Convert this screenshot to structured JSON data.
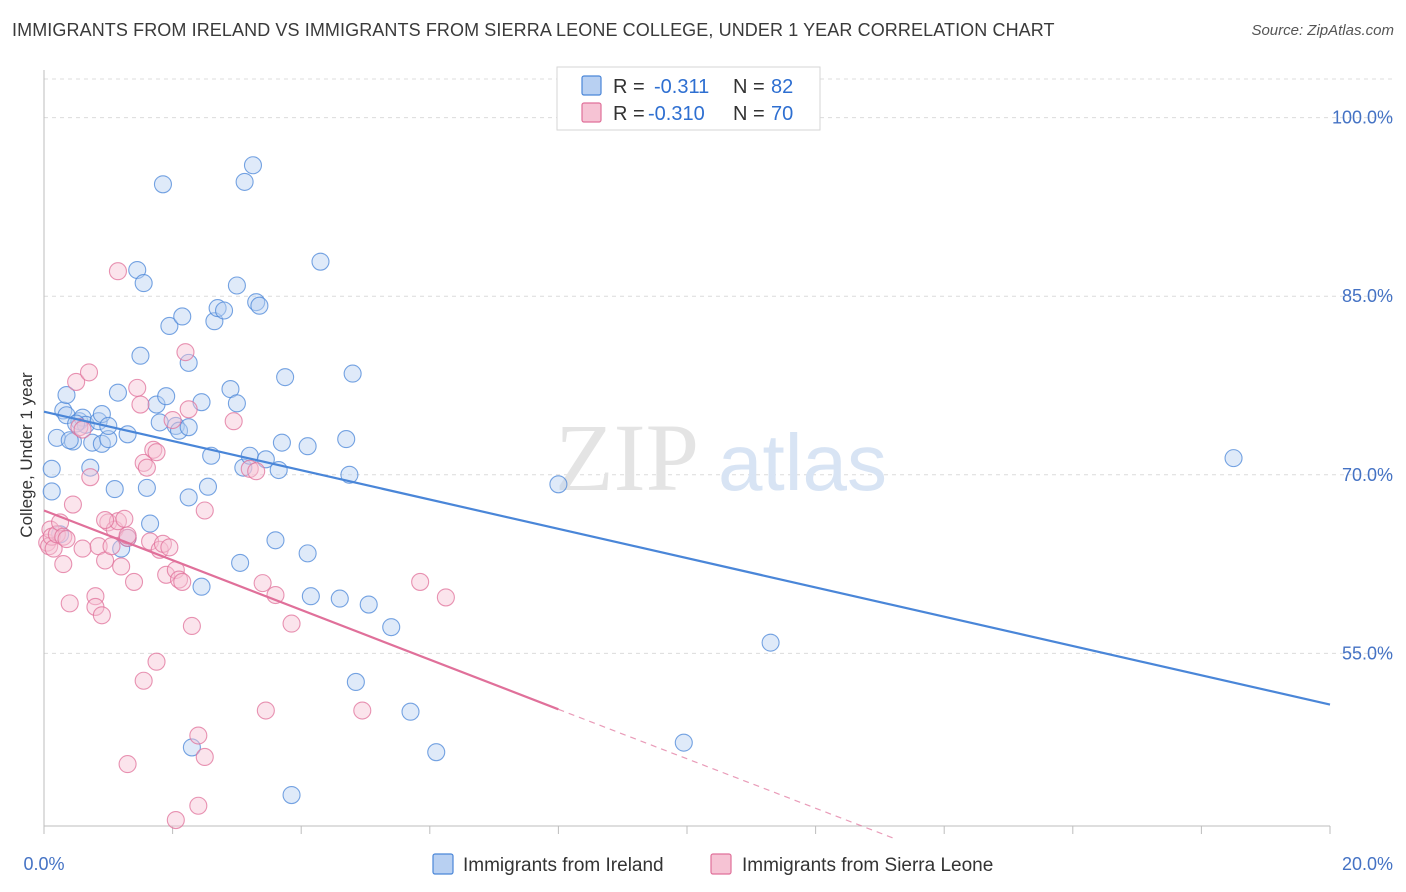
{
  "header": {
    "title": "IMMIGRANTS FROM IRELAND VS IMMIGRANTS FROM SIERRA LEONE COLLEGE, UNDER 1 YEAR CORRELATION CHART",
    "source": "Source: ZipAtlas.com"
  },
  "watermark": {
    "zip": "ZIP",
    "atlas": "atlas"
  },
  "stats_legend": {
    "r_label": "R =",
    "n_label": "N =",
    "rows": [
      {
        "r": "-0.311",
        "n": "82"
      },
      {
        "r": "-0.310",
        "n": "70"
      }
    ]
  },
  "colors": {
    "ireland": "#4a86d8",
    "ireland_fill": "#b8d0f2",
    "sierra_leone": "#e0709a",
    "sierra_leone_fill": "#f6c3d4",
    "tick_text": "#4472c4",
    "grid": "#dcdcdc"
  },
  "chart_data": {
    "type": "scatter",
    "title": "IMMIGRANTS FROM IRELAND VS IMMIGRANTS FROM SIERRA LEONE COLLEGE, UNDER 1 YEAR CORRELATION CHART",
    "xlabel": "",
    "ylabel": "College, Under 1 year",
    "xlim": [
      0,
      20
    ],
    "ylim": [
      40.5,
      104
    ],
    "x_tick_labels": [
      "0.0%",
      "20.0%"
    ],
    "y_ticks": [
      55,
      70,
      85,
      100
    ],
    "y_tick_labels": [
      "55.0%",
      "70.0%",
      "85.0%",
      "100.0%"
    ],
    "grid": true,
    "legend_position": "bottom",
    "series": [
      {
        "name": "Immigrants from Ireland",
        "color": "#4a86d8",
        "trend": {
          "x": [
            0,
            20
          ],
          "y": [
            75.3,
            50.7
          ],
          "style": "solid"
        },
        "points": [
          [
            0.12,
            70.5
          ],
          [
            0.12,
            68.6
          ],
          [
            0.2,
            73.1
          ],
          [
            0.3,
            75.4
          ],
          [
            0.35,
            76.7
          ],
          [
            0.35,
            75.0
          ],
          [
            0.45,
            72.8
          ],
          [
            0.55,
            74.5
          ],
          [
            0.6,
            74.8
          ],
          [
            0.65,
            74.2
          ],
          [
            0.72,
            70.6
          ],
          [
            0.75,
            72.7
          ],
          [
            0.85,
            74.5
          ],
          [
            0.9,
            75.1
          ],
          [
            0.9,
            72.6
          ],
          [
            1.0,
            73.0
          ],
          [
            1.1,
            68.8
          ],
          [
            1.15,
            76.9
          ],
          [
            1.2,
            63.8
          ],
          [
            1.3,
            73.4
          ],
          [
            1.3,
            64.7
          ],
          [
            1.45,
            87.2
          ],
          [
            1.5,
            80.0
          ],
          [
            1.55,
            86.1
          ],
          [
            1.6,
            68.9
          ],
          [
            1.65,
            65.9
          ],
          [
            1.75,
            75.9
          ],
          [
            1.8,
            74.4
          ],
          [
            1.85,
            94.4
          ],
          [
            1.9,
            76.6
          ],
          [
            1.95,
            82.5
          ],
          [
            2.05,
            74.1
          ],
          [
            2.1,
            73.7
          ],
          [
            2.15,
            83.3
          ],
          [
            2.25,
            74.0
          ],
          [
            2.25,
            79.4
          ],
          [
            2.25,
            68.1
          ],
          [
            2.45,
            76.1
          ],
          [
            2.45,
            60.6
          ],
          [
            2.55,
            69.0
          ],
          [
            2.6,
            71.6
          ],
          [
            2.65,
            82.9
          ],
          [
            2.7,
            84.0
          ],
          [
            2.8,
            83.8
          ],
          [
            2.9,
            77.2
          ],
          [
            3.0,
            76.0
          ],
          [
            3.0,
            85.9
          ],
          [
            3.05,
            62.6
          ],
          [
            3.1,
            70.6
          ],
          [
            3.12,
            94.6
          ],
          [
            3.2,
            71.6
          ],
          [
            3.25,
            96.0
          ],
          [
            3.3,
            84.5
          ],
          [
            3.35,
            84.2
          ],
          [
            3.45,
            71.3
          ],
          [
            3.6,
            64.5
          ],
          [
            3.65,
            70.4
          ],
          [
            3.7,
            72.7
          ],
          [
            3.75,
            78.2
          ],
          [
            3.85,
            43.1
          ],
          [
            4.1,
            72.4
          ],
          [
            4.1,
            63.4
          ],
          [
            4.15,
            59.8
          ],
          [
            4.3,
            87.9
          ],
          [
            4.6,
            59.6
          ],
          [
            4.7,
            73.0
          ],
          [
            4.75,
            70.0
          ],
          [
            4.8,
            78.5
          ],
          [
            4.85,
            52.6
          ],
          [
            5.05,
            59.1
          ],
          [
            5.4,
            57.2
          ],
          [
            5.7,
            50.1
          ],
          [
            6.1,
            46.7
          ],
          [
            8.0,
            69.2
          ],
          [
            9.95,
            47.5
          ],
          [
            11.3,
            55.9
          ],
          [
            18.5,
            71.4
          ],
          [
            2.3,
            47.1
          ],
          [
            1.0,
            74.1
          ],
          [
            0.5,
            74.3
          ],
          [
            0.4,
            72.9
          ],
          [
            0.25,
            65.0
          ]
        ]
      },
      {
        "name": "Immigrants from Sierra Leone",
        "color": "#e0709a",
        "trend": {
          "x": [
            0,
            8
          ],
          "y": [
            67.0,
            50.3
          ],
          "style": "solid",
          "dashed_extension": {
            "x": [
              8,
              13.2
            ],
            "y": [
              50.3,
              39.5
            ]
          }
        },
        "points": [
          [
            0.05,
            64.3
          ],
          [
            0.08,
            64.0
          ],
          [
            0.1,
            65.4
          ],
          [
            0.12,
            64.8
          ],
          [
            0.15,
            63.8
          ],
          [
            0.2,
            65.0
          ],
          [
            0.25,
            66.0
          ],
          [
            0.3,
            64.8
          ],
          [
            0.3,
            62.5
          ],
          [
            0.35,
            64.6
          ],
          [
            0.4,
            59.2
          ],
          [
            0.45,
            67.5
          ],
          [
            0.5,
            77.8
          ],
          [
            0.55,
            74.0
          ],
          [
            0.6,
            63.8
          ],
          [
            0.6,
            73.8
          ],
          [
            0.7,
            78.6
          ],
          [
            0.72,
            69.8
          ],
          [
            0.8,
            59.8
          ],
          [
            0.8,
            58.9
          ],
          [
            0.85,
            64.0
          ],
          [
            0.9,
            58.2
          ],
          [
            0.95,
            62.8
          ],
          [
            1.0,
            66.0
          ],
          [
            1.05,
            64.0
          ],
          [
            1.1,
            65.4
          ],
          [
            1.15,
            66.1
          ],
          [
            1.2,
            62.3
          ],
          [
            1.25,
            66.3
          ],
          [
            1.3,
            64.7
          ],
          [
            1.4,
            61.0
          ],
          [
            1.45,
            77.3
          ],
          [
            1.5,
            75.9
          ],
          [
            1.55,
            71.0
          ],
          [
            1.6,
            70.6
          ],
          [
            1.65,
            64.4
          ],
          [
            1.7,
            72.1
          ],
          [
            1.75,
            71.9
          ],
          [
            1.8,
            63.7
          ],
          [
            1.85,
            64.2
          ],
          [
            1.9,
            61.6
          ],
          [
            1.95,
            63.9
          ],
          [
            2.0,
            74.6
          ],
          [
            2.05,
            62.0
          ],
          [
            2.1,
            61.2
          ],
          [
            2.15,
            61.0
          ],
          [
            2.2,
            80.3
          ],
          [
            2.25,
            75.5
          ],
          [
            2.3,
            57.3
          ],
          [
            2.4,
            48.1
          ],
          [
            2.5,
            46.3
          ],
          [
            2.5,
            67.0
          ],
          [
            2.95,
            74.5
          ],
          [
            3.2,
            70.5
          ],
          [
            3.3,
            70.3
          ],
          [
            3.4,
            60.9
          ],
          [
            3.45,
            50.2
          ],
          [
            3.6,
            59.9
          ],
          [
            3.85,
            57.5
          ],
          [
            4.95,
            50.2
          ],
          [
            5.85,
            61.0
          ],
          [
            6.25,
            59.7
          ],
          [
            1.15,
            87.1
          ],
          [
            1.3,
            45.7
          ],
          [
            1.55,
            52.7
          ],
          [
            1.75,
            54.3
          ],
          [
            2.05,
            41.0
          ],
          [
            2.4,
            42.2
          ],
          [
            1.3,
            64.9
          ],
          [
            0.95,
            66.2
          ]
        ]
      }
    ]
  }
}
